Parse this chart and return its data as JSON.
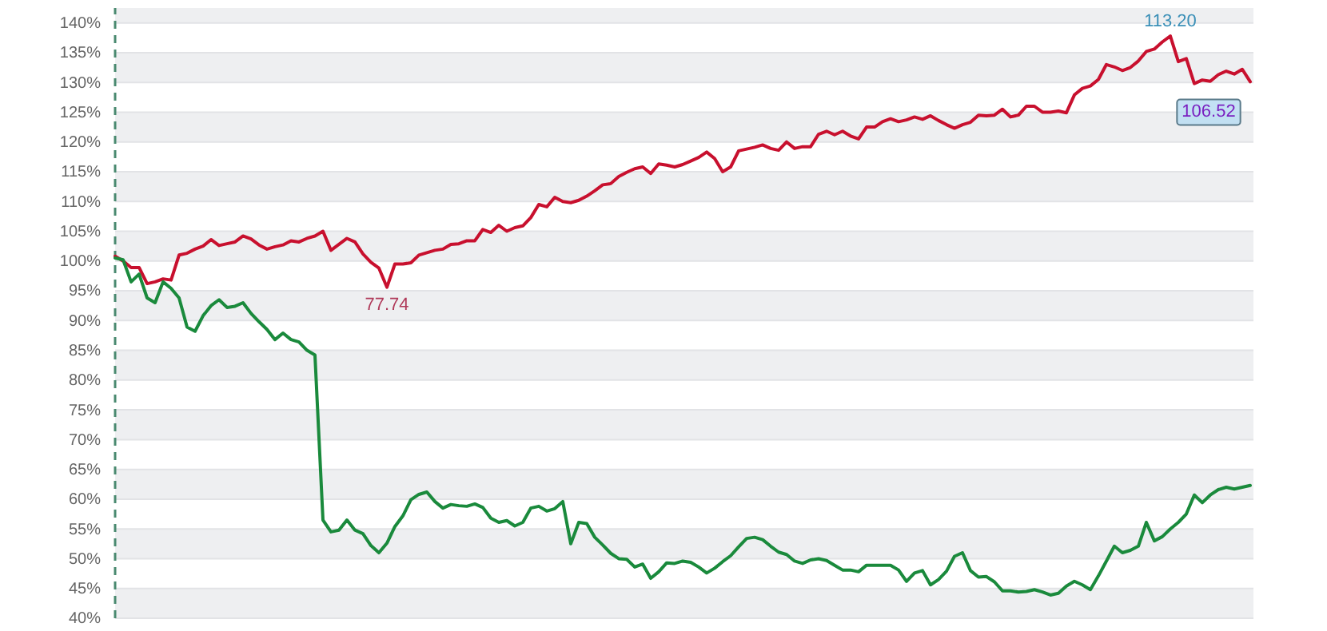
{
  "chart_data": {
    "type": "line",
    "categories": [
      null,
      null,
      null,
      null,
      null,
      null,
      null,
      null,
      null,
      null,
      null,
      null,
      null,
      null,
      null,
      null,
      null,
      null,
      null,
      null,
      null,
      null,
      null,
      null,
      null,
      null,
      null,
      null,
      null,
      null,
      null,
      null,
      null,
      null,
      null,
      null,
      null,
      null,
      null,
      null,
      null,
      null,
      null,
      null,
      null,
      null,
      null,
      null,
      null,
      null,
      null,
      null,
      null,
      null,
      null,
      null,
      null,
      null,
      null,
      null,
      null,
      null,
      null,
      null,
      null,
      null,
      null,
      null,
      null,
      null,
      null,
      null,
      null,
      null,
      null,
      null,
      null,
      null,
      null,
      null,
      null,
      null,
      null,
      null,
      null,
      null,
      null,
      null,
      null,
      null,
      null,
      null,
      null,
      null,
      null,
      null,
      null,
      null,
      null,
      null,
      null,
      null,
      null,
      null,
      null,
      null,
      null,
      null,
      null,
      null,
      null,
      null,
      null,
      null,
      null,
      null,
      null,
      null,
      null,
      null,
      null,
      null,
      null,
      null,
      null,
      null,
      null,
      null,
      null,
      null,
      null,
      null,
      null,
      null,
      null,
      null,
      null,
      null,
      null,
      null,
      null,
      null,
      null
    ],
    "series": [
      {
        "color": "#c8102e",
        "values": [
          100.8,
          100.0,
          98.9,
          98.9,
          96.2,
          96.5,
          97.0,
          96.8,
          101.0,
          101.3,
          102.0,
          102.5,
          103.6,
          102.6,
          102.9,
          103.2,
          104.2,
          103.7,
          102.7,
          102.0,
          102.4,
          102.7,
          103.4,
          103.2,
          103.8,
          104.2,
          105.0,
          101.8,
          102.8,
          103.8,
          103.2,
          101.2,
          99.8,
          98.8,
          95.6,
          99.5,
          99.5,
          99.7,
          101.0,
          101.4,
          101.8,
          102.0,
          102.8,
          102.9,
          103.4,
          103.4,
          105.3,
          104.8,
          106.0,
          105.0,
          105.6,
          105.9,
          107.3,
          109.5,
          109.1,
          110.7,
          110.0,
          109.8,
          110.2,
          110.9,
          111.8,
          112.8,
          113.0,
          114.2,
          114.9,
          115.5,
          115.8,
          114.7,
          116.3,
          116.1,
          115.8,
          116.2,
          116.8,
          117.4,
          118.3,
          117.2,
          115.0,
          115.8,
          118.5,
          118.8,
          119.1,
          119.5,
          118.9,
          118.6,
          120.0,
          118.9,
          119.2,
          119.2,
          121.3,
          121.8,
          121.2,
          121.8,
          121.0,
          120.5,
          122.5,
          122.5,
          123.4,
          123.9,
          123.4,
          123.7,
          124.2,
          123.8,
          124.4,
          123.6,
          122.9,
          122.3,
          122.9,
          123.3,
          124.5,
          124.4,
          124.5,
          125.5,
          124.2,
          124.5,
          126.0,
          126.0,
          125.0,
          125.0,
          125.2,
          124.9,
          127.9,
          129.0,
          129.4,
          130.5,
          133.0,
          132.6,
          132.0,
          132.5,
          133.6,
          135.2,
          135.6,
          136.8,
          137.8,
          133.5,
          134.0,
          129.8,
          130.4,
          130.2,
          131.3,
          131.9,
          131.4,
          132.2,
          130.1
        ]
      },
      {
        "color": "#1a8a3c",
        "values": [
          100.5,
          100.2,
          96.5,
          97.8,
          93.8,
          93.0,
          96.5,
          95.4,
          93.8,
          88.9,
          88.2,
          90.8,
          92.5,
          93.5,
          92.2,
          92.4,
          93.0,
          91.2,
          89.8,
          88.5,
          86.8,
          87.9,
          86.8,
          86.4,
          85.0,
          84.2,
          56.5,
          54.5,
          54.8,
          56.5,
          54.8,
          54.2,
          52.2,
          51.0,
          52.6,
          55.4,
          57.2,
          59.9,
          60.8,
          61.2,
          59.6,
          58.5,
          59.1,
          58.9,
          58.8,
          59.2,
          58.6,
          56.8,
          56.1,
          56.4,
          55.5,
          56.1,
          58.5,
          58.8,
          58.0,
          58.4,
          59.6,
          52.5,
          56.1,
          55.9,
          53.6,
          52.3,
          50.9,
          50.0,
          49.9,
          48.6,
          49.1,
          46.7,
          47.8,
          49.3,
          49.2,
          49.6,
          49.4,
          48.6,
          47.6,
          48.4,
          49.5,
          50.5,
          52.0,
          53.4,
          53.6,
          53.2,
          52.1,
          51.1,
          50.7,
          49.6,
          49.2,
          49.8,
          50.0,
          49.7,
          48.9,
          48.1,
          48.1,
          47.8,
          48.9,
          48.9,
          48.9,
          48.9,
          48.1,
          46.2,
          47.6,
          48.0,
          45.6,
          46.5,
          47.9,
          50.4,
          51.0,
          48.0,
          46.9,
          47.0,
          46.1,
          44.6,
          44.6,
          44.4,
          44.5,
          44.8,
          44.4,
          43.9,
          44.2,
          45.4,
          46.2,
          45.6,
          44.8,
          47.1,
          49.6,
          52.1,
          51.0,
          51.4,
          52.1,
          56.1,
          53.0,
          53.7,
          55.0,
          56.1,
          57.5,
          60.7,
          59.4,
          60.7,
          61.6,
          62.0,
          61.7,
          62.0,
          62.3
        ]
      }
    ],
    "ylim": [
      40,
      142.5
    ],
    "yticks": [
      {
        "value": 40,
        "label": "40%"
      },
      {
        "value": 45,
        "label": "45%"
      },
      {
        "value": 50,
        "label": "50%"
      },
      {
        "value": 55,
        "label": "55%"
      },
      {
        "value": 60,
        "label": "60%"
      },
      {
        "value": 65,
        "label": "65%"
      },
      {
        "value": 70,
        "label": "70%"
      },
      {
        "value": 75,
        "label": "75%"
      },
      {
        "value": 80,
        "label": "80%"
      },
      {
        "value": 85,
        "label": "85%"
      },
      {
        "value": 90,
        "label": "90%"
      },
      {
        "value": 95,
        "label": "95%"
      },
      {
        "value": 100,
        "label": "100%"
      },
      {
        "value": 105,
        "label": "105%"
      },
      {
        "value": 110,
        "label": "110%"
      },
      {
        "value": 115,
        "label": "115%"
      },
      {
        "value": 120,
        "label": "120%"
      },
      {
        "value": 125,
        "label": "125%"
      },
      {
        "value": 130,
        "label": "130%"
      },
      {
        "value": 135,
        "label": "135%"
      },
      {
        "value": 140,
        "label": "140%"
      }
    ],
    "grid": "y",
    "tick_labels": "y",
    "annotations": [
      {
        "text": "77.74",
        "y": 95.6
      },
      {
        "text": "113.20",
        "y": 137.8
      },
      {
        "text": "106.52",
        "y": 130.1
      }
    ]
  }
}
